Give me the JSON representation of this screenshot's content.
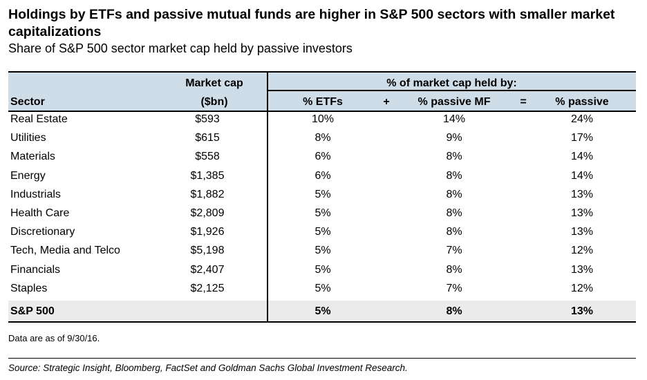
{
  "title": "Holdings by ETFs and passive mutual funds are higher in S&P 500 sectors with smaller market capitalizations",
  "subtitle": "Share of S&P 500 sector market cap held by passive investors",
  "header": {
    "market_cap_line1": "Market cap",
    "market_cap_line2": "($bn)",
    "sector": "Sector",
    "group": "% of market cap held by:",
    "etfs": "% ETFs",
    "plus": "+",
    "passive_mf": "% passive MF",
    "equals": "=",
    "passive": "% passive"
  },
  "chart_data": {
    "type": "table",
    "columns": [
      "Sector",
      "Market cap ($bn)",
      "% ETFs",
      "% passive MF",
      "% passive"
    ],
    "rows": [
      {
        "sector": "Real Estate",
        "market_cap": "$593",
        "etfs": "10%",
        "passive_mf": "14%",
        "passive": "24%"
      },
      {
        "sector": "Utilities",
        "market_cap": "$615",
        "etfs": "8%",
        "passive_mf": "9%",
        "passive": "17%"
      },
      {
        "sector": "Materials",
        "market_cap": "$558",
        "etfs": "6%",
        "passive_mf": "8%",
        "passive": "14%"
      },
      {
        "sector": "Energy",
        "market_cap": "$1,385",
        "etfs": "6%",
        "passive_mf": "8%",
        "passive": "14%"
      },
      {
        "sector": "Industrials",
        "market_cap": "$1,882",
        "etfs": "5%",
        "passive_mf": "8%",
        "passive": "13%"
      },
      {
        "sector": "Health Care",
        "market_cap": "$2,809",
        "etfs": "5%",
        "passive_mf": "8%",
        "passive": "13%"
      },
      {
        "sector": "Discretionary",
        "market_cap": "$1,926",
        "etfs": "5%",
        "passive_mf": "8%",
        "passive": "13%"
      },
      {
        "sector": "Tech, Media and Telco",
        "market_cap": "$5,198",
        "etfs": "5%",
        "passive_mf": "7%",
        "passive": "12%"
      },
      {
        "sector": "Financials",
        "market_cap": "$2,407",
        "etfs": "5%",
        "passive_mf": "8%",
        "passive": "13%"
      },
      {
        "sector": "Staples",
        "market_cap": "$2,125",
        "etfs": "5%",
        "passive_mf": "7%",
        "passive": "12%"
      }
    ],
    "total": {
      "sector": "S&P 500",
      "market_cap": "",
      "etfs": "5%",
      "passive_mf": "8%",
      "passive": "13%"
    }
  },
  "note": "Data are as of 9/30/16.",
  "source": "Source: Strategic Insight, Bloomberg, FactSet and Goldman Sachs Global Investment Research.",
  "colors": {
    "header_bg": "#cfdde9",
    "total_bg": "#ebebeb"
  }
}
